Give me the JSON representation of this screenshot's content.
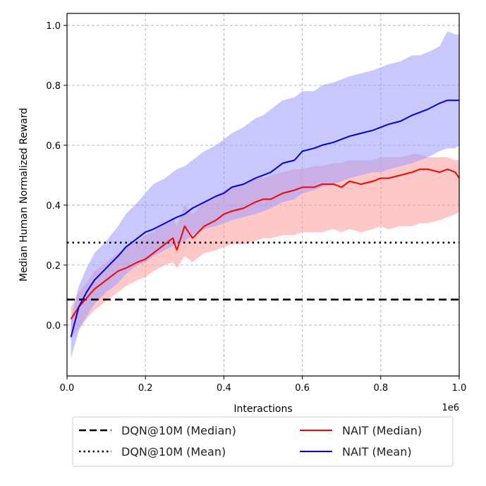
{
  "chart_data": {
    "type": "line",
    "title": "",
    "xlabel": "Interactions",
    "ylabel": "Median Human Normalized Reward",
    "x_offset_label": "1e6",
    "xlim": [
      0,
      1.0
    ],
    "ylim": [
      -0.17,
      1.04
    ],
    "xticks": [
      0.0,
      0.2,
      0.4,
      0.6,
      0.8,
      1.0
    ],
    "xtick_labels": [
      "0.0",
      "0.2",
      "0.4",
      "0.6",
      "0.8",
      "1.0"
    ],
    "yticks": [
      0.0,
      0.2,
      0.4,
      0.6,
      0.8,
      1.0
    ],
    "ytick_labels": [
      "0.0",
      "0.2",
      "0.4",
      "0.6",
      "0.8",
      "1.0"
    ],
    "grid": true,
    "legend_position": "bottom-outside",
    "baselines": [
      {
        "name": "DQN@10M (Median)",
        "value": 0.085,
        "style": "dashed",
        "color": "#000000"
      },
      {
        "name": "DQN@10M (Mean)",
        "value": 0.275,
        "style": "dotted",
        "color": "#000000"
      }
    ],
    "series": [
      {
        "name": "NAIT (Median)",
        "color": "#ff0000",
        "band_color": "#ff9a9a",
        "x": [
          0.01,
          0.03,
          0.05,
          0.07,
          0.1,
          0.13,
          0.15,
          0.18,
          0.2,
          0.22,
          0.25,
          0.27,
          0.28,
          0.3,
          0.32,
          0.35,
          0.38,
          0.4,
          0.42,
          0.45,
          0.48,
          0.5,
          0.52,
          0.55,
          0.58,
          0.6,
          0.63,
          0.65,
          0.68,
          0.7,
          0.72,
          0.75,
          0.78,
          0.8,
          0.82,
          0.85,
          0.88,
          0.9,
          0.92,
          0.95,
          0.97,
          0.99,
          1.0
        ],
        "values": [
          0.02,
          0.06,
          0.09,
          0.12,
          0.15,
          0.18,
          0.19,
          0.21,
          0.22,
          0.24,
          0.27,
          0.29,
          0.25,
          0.33,
          0.29,
          0.33,
          0.35,
          0.37,
          0.38,
          0.39,
          0.41,
          0.42,
          0.42,
          0.44,
          0.45,
          0.46,
          0.46,
          0.47,
          0.47,
          0.46,
          0.48,
          0.47,
          0.48,
          0.49,
          0.49,
          0.5,
          0.51,
          0.52,
          0.52,
          0.51,
          0.52,
          0.51,
          0.49
        ],
        "lower": [
          -0.05,
          -0.01,
          0.02,
          0.05,
          0.08,
          0.11,
          0.13,
          0.15,
          0.16,
          0.18,
          0.2,
          0.21,
          0.19,
          0.23,
          0.21,
          0.24,
          0.25,
          0.26,
          0.27,
          0.27,
          0.28,
          0.29,
          0.29,
          0.3,
          0.3,
          0.31,
          0.31,
          0.31,
          0.32,
          0.31,
          0.32,
          0.31,
          0.32,
          0.33,
          0.32,
          0.33,
          0.33,
          0.34,
          0.34,
          0.35,
          0.36,
          0.37,
          0.38
        ],
        "upper": [
          0.06,
          0.11,
          0.14,
          0.18,
          0.21,
          0.24,
          0.26,
          0.28,
          0.3,
          0.31,
          0.34,
          0.36,
          0.33,
          0.4,
          0.37,
          0.41,
          0.43,
          0.45,
          0.46,
          0.47,
          0.49,
          0.49,
          0.5,
          0.51,
          0.52,
          0.52,
          0.53,
          0.53,
          0.54,
          0.54,
          0.55,
          0.55,
          0.55,
          0.56,
          0.56,
          0.56,
          0.57,
          0.57,
          0.56,
          0.56,
          0.56,
          0.55,
          0.55
        ]
      },
      {
        "name": "NAIT (Mean)",
        "color": "#0000dd",
        "band_color": "#9a9aff",
        "x": [
          0.01,
          0.03,
          0.05,
          0.07,
          0.1,
          0.13,
          0.15,
          0.18,
          0.2,
          0.22,
          0.25,
          0.28,
          0.3,
          0.32,
          0.35,
          0.38,
          0.4,
          0.42,
          0.45,
          0.48,
          0.5,
          0.52,
          0.55,
          0.58,
          0.6,
          0.63,
          0.65,
          0.68,
          0.7,
          0.72,
          0.75,
          0.78,
          0.8,
          0.82,
          0.85,
          0.88,
          0.9,
          0.92,
          0.95,
          0.97,
          0.99,
          1.0
        ],
        "values": [
          -0.04,
          0.06,
          0.11,
          0.15,
          0.19,
          0.23,
          0.26,
          0.29,
          0.31,
          0.32,
          0.34,
          0.36,
          0.37,
          0.39,
          0.41,
          0.43,
          0.44,
          0.46,
          0.47,
          0.49,
          0.5,
          0.51,
          0.54,
          0.55,
          0.58,
          0.59,
          0.6,
          0.61,
          0.62,
          0.63,
          0.64,
          0.65,
          0.66,
          0.67,
          0.68,
          0.7,
          0.71,
          0.72,
          0.74,
          0.75,
          0.75,
          0.75
        ],
        "lower": [
          -0.11,
          -0.02,
          0.03,
          0.07,
          0.11,
          0.14,
          0.17,
          0.2,
          0.21,
          0.23,
          0.25,
          0.27,
          0.28,
          0.3,
          0.32,
          0.33,
          0.34,
          0.35,
          0.36,
          0.37,
          0.38,
          0.39,
          0.41,
          0.42,
          0.44,
          0.45,
          0.46,
          0.47,
          0.48,
          0.49,
          0.5,
          0.51,
          0.51,
          0.52,
          0.53,
          0.54,
          0.55,
          0.56,
          0.58,
          0.59,
          0.59,
          0.6
        ],
        "upper": [
          0.02,
          0.13,
          0.19,
          0.24,
          0.28,
          0.33,
          0.37,
          0.41,
          0.44,
          0.47,
          0.49,
          0.52,
          0.53,
          0.55,
          0.58,
          0.6,
          0.62,
          0.64,
          0.66,
          0.69,
          0.7,
          0.72,
          0.75,
          0.76,
          0.78,
          0.78,
          0.8,
          0.81,
          0.82,
          0.83,
          0.84,
          0.85,
          0.86,
          0.87,
          0.88,
          0.9,
          0.9,
          0.91,
          0.93,
          0.98,
          0.97,
          0.97
        ]
      }
    ]
  }
}
